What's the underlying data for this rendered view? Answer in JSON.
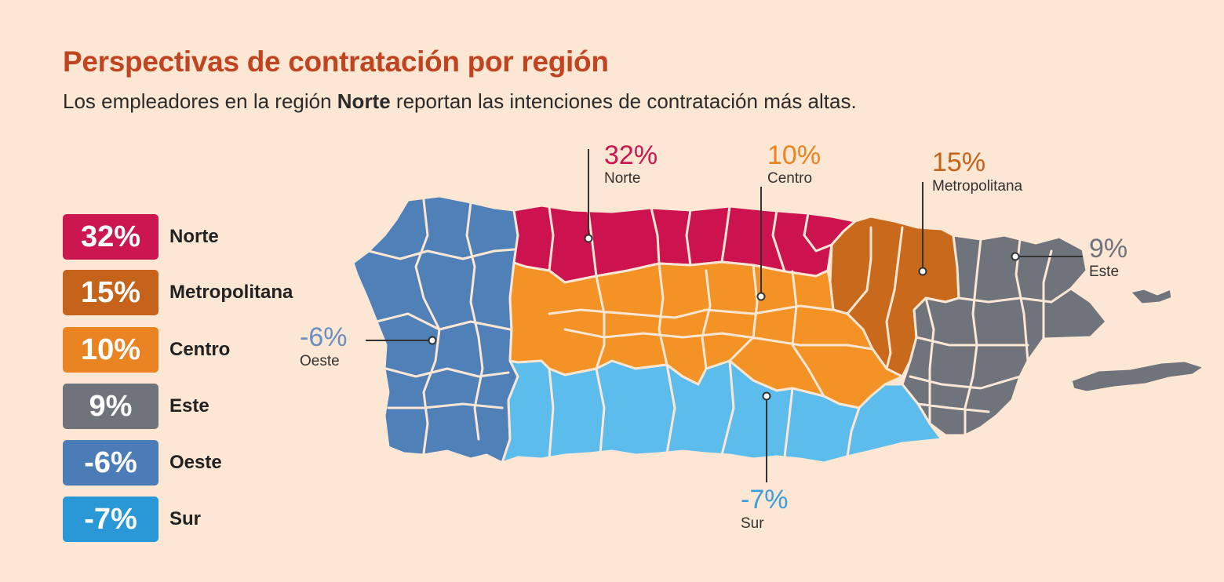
{
  "header": {
    "title": "Perspectivas de contratación por región",
    "subtitle_pre": "Los empleadores en la región ",
    "subtitle_bold": "Norte",
    "subtitle_post": " reportan las intenciones de contratación más altas."
  },
  "legend": [
    {
      "value": "32%",
      "name": "Norte",
      "color": "#cb1650"
    },
    {
      "value": "15%",
      "name": "Metropolitana",
      "color": "#c5631b"
    },
    {
      "value": "10%",
      "name": "Centro",
      "color": "#ea8422"
    },
    {
      "value": "9%",
      "name": "Este",
      "color": "#6f737c"
    },
    {
      "value": "-6%",
      "name": "Oeste",
      "color": "#4c7cb8"
    },
    {
      "value": "-7%",
      "name": "Sur",
      "color": "#2a97d6"
    }
  ],
  "map": {
    "region_colors": {
      "norte": "#cc1350",
      "metropolitana": "#c9691b",
      "centro": "#f39325",
      "este": "#6f737c",
      "oeste": "#4f80b8",
      "sur": "#5cbdec"
    },
    "callouts": {
      "norte": {
        "value": "32%",
        "name": "Norte",
        "color": "#cb1650"
      },
      "centro": {
        "value": "10%",
        "name": "Centro",
        "color": "#ea8422"
      },
      "metropolitana": {
        "value": "15%",
        "name": "Metropolitana",
        "color": "#c5631b"
      },
      "este": {
        "value": "9%",
        "name": "Este",
        "color": "#6f737c"
      },
      "oeste": {
        "value": "-6%",
        "name": "Oeste",
        "color": "#6b8fc2"
      },
      "sur": {
        "value": "-7%",
        "name": "Sur",
        "color": "#3a9fdc"
      }
    }
  }
}
